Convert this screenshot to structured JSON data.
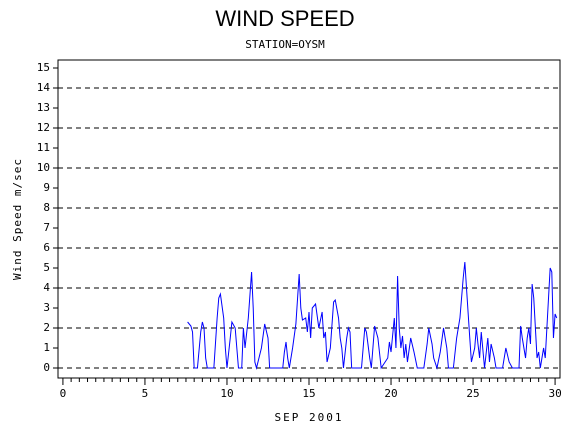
{
  "chart_data": {
    "type": "line",
    "title": "WIND SPEED",
    "subtitle": "STATION=OYSM",
    "x_label": "SEP 2001",
    "y_label": "Wind Speed m/sec",
    "color": "#0000ff",
    "xlim": [
      -0.3,
      30.3
    ],
    "xticks": [
      0,
      5,
      10,
      15,
      20,
      25,
      30
    ],
    "ylim": [
      -0.5,
      15.4
    ],
    "yticks": [
      0,
      1,
      2,
      3,
      4,
      5,
      6,
      7,
      8,
      9,
      10,
      11,
      12,
      13,
      14,
      15
    ],
    "ygrid": [
      0,
      2,
      4,
      6,
      8,
      10,
      12,
      14
    ],
    "x": [
      7.6,
      7.8,
      7.9,
      8.0,
      8.2,
      8.4,
      8.5,
      8.6,
      8.7,
      8.8,
      9.2,
      9.4,
      9.5,
      9.6,
      9.8,
      9.9,
      10.0,
      10.2,
      10.3,
      10.5,
      10.6,
      10.7,
      10.9,
      11.0,
      11.1,
      11.3,
      11.5,
      11.6,
      11.7,
      11.8,
      12.1,
      12.3,
      12.5,
      12.6,
      13.4,
      13.5,
      13.6,
      13.7,
      13.8,
      14.0,
      14.2,
      14.4,
      14.5,
      14.6,
      14.8,
      14.9,
      15.0,
      15.1,
      15.2,
      15.4,
      15.6,
      15.8,
      15.9,
      16.0,
      16.1,
      16.3,
      16.5,
      16.6,
      16.8,
      16.9,
      17.0,
      17.1,
      17.3,
      17.4,
      17.5,
      17.6,
      18.2,
      18.4,
      18.5,
      18.7,
      18.8,
      19.0,
      19.2,
      19.4,
      19.8,
      19.9,
      20.0,
      20.2,
      20.3,
      20.4,
      20.5,
      20.6,
      20.7,
      20.8,
      20.9,
      21.0,
      21.2,
      21.4,
      21.6,
      22.0,
      22.2,
      22.3,
      22.5,
      22.6,
      22.8,
      23.0,
      23.2,
      23.4,
      23.5,
      23.8,
      24.0,
      24.2,
      24.4,
      24.5,
      24.6,
      24.8,
      24.9,
      25.1,
      25.2,
      25.3,
      25.4,
      25.5,
      25.7,
      25.9,
      26.0,
      26.1,
      26.3,
      26.4,
      26.8,
      27.0,
      27.2,
      27.4,
      27.8,
      27.9,
      28.0,
      28.2,
      28.3,
      28.4,
      28.5,
      28.6,
      28.7,
      28.9,
      29.0,
      29.1,
      29.3,
      29.4,
      29.5,
      29.6,
      29.7,
      29.8,
      29.9,
      30.0,
      30.1
    ],
    "values": [
      2.3,
      2.1,
      1.8,
      0,
      0,
      1.8,
      2.3,
      2.0,
      0.5,
      0,
      0,
      2.5,
      3.5,
      3.7,
      2.5,
      1.0,
      0,
      1.5,
      2.3,
      2.0,
      1.0,
      0,
      0,
      2.0,
      1.0,
      2.5,
      4.8,
      3.0,
      0.3,
      0,
      1.0,
      2.2,
      1.5,
      0,
      0,
      0.8,
      1.3,
      0.5,
      0,
      1.0,
      2.2,
      4.7,
      3.0,
      2.4,
      2.5,
      1.8,
      2.8,
      1.5,
      3.0,
      3.2,
      2.0,
      2.8,
      1.5,
      1.8,
      0.3,
      1.0,
      3.3,
      3.4,
      2.5,
      1.5,
      1.0,
      0,
      1.5,
      2.0,
      1.8,
      0,
      0,
      2.0,
      1.8,
      0.5,
      0,
      2.1,
      1.5,
      0,
      0.5,
      1.3,
      0.8,
      2.5,
      1.0,
      4.6,
      2.0,
      1.0,
      1.6,
      0.5,
      1.2,
      0.3,
      1.5,
      0.8,
      0,
      0,
      1.2,
      2.0,
      1.2,
      0.5,
      0,
      0.8,
      2.0,
      1.0,
      0,
      0,
      1.5,
      2.5,
      4.5,
      5.3,
      4.0,
      1.5,
      0.3,
      1.0,
      2.0,
      1.2,
      0.5,
      1.8,
      0,
      1.5,
      0.3,
      1.2,
      0.5,
      0,
      0,
      1.0,
      0.3,
      0,
      0,
      2.1,
      1.5,
      0.5,
      1.5,
      2.0,
      1.2,
      4.2,
      3.5,
      0.5,
      0.8,
      0,
      1.0,
      0.5,
      2.0,
      3.5,
      5.0,
      4.8,
      1.5,
      2.7,
      2.5
    ]
  }
}
